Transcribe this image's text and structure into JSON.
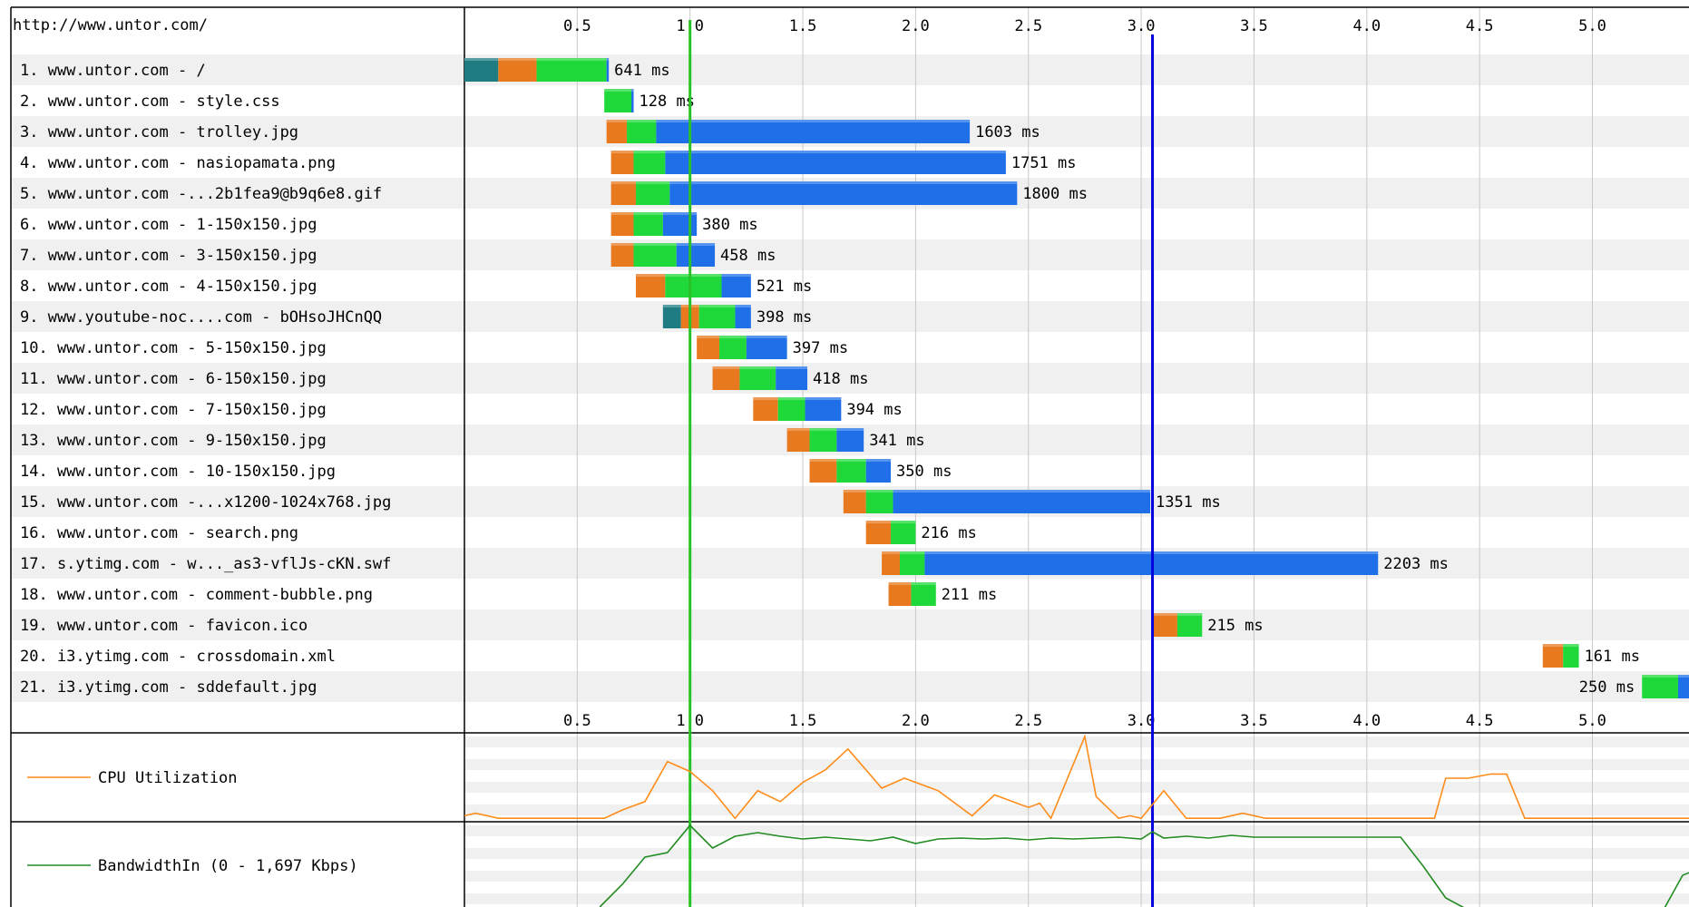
{
  "page_url": "http://www.untor.com/",
  "colors": {
    "dns": "#1f7c83",
    "connect": "#e8791f",
    "ttfb": "#1fd83a",
    "download": "#1f70e8",
    "start_render": "#28c228",
    "onload": "#0000dd",
    "row_stripe": "#f0f0f0",
    "grid": "#c8c8c8",
    "cpu": "#ff8c1a",
    "bandwidth": "#228b22"
  },
  "chart_data": {
    "type": "waterfall",
    "x_unit": "seconds",
    "xlim": [
      0,
      5.45
    ],
    "x_ticks": [
      "0.5",
      "1.0",
      "1.5",
      "2.0",
      "2.5",
      "3.0",
      "3.5",
      "4.0",
      "4.5",
      "5.0"
    ],
    "x_tick_values": [
      0.5,
      1.0,
      1.5,
      2.0,
      2.5,
      3.0,
      3.5,
      4.0,
      4.5,
      5.0
    ],
    "start_render_s": 1.0,
    "onload_s": 3.05,
    "requests": [
      {
        "label": "1. www.untor.com - /",
        "duration": "641 ms",
        "dns": [
          0.0,
          0.15
        ],
        "connect": [
          0.15,
          0.32
        ],
        "ttfb": [
          0.32,
          0.63
        ],
        "download": [
          0.63,
          0.64
        ]
      },
      {
        "label": "2. www.untor.com - style.css",
        "duration": "128 ms",
        "ttfb": [
          0.62,
          0.74
        ],
        "download": [
          0.74,
          0.75
        ]
      },
      {
        "label": "3. www.untor.com - trolley.jpg",
        "duration": "1603 ms",
        "connect": [
          0.63,
          0.72
        ],
        "ttfb": [
          0.72,
          0.85
        ],
        "download": [
          0.85,
          2.24
        ]
      },
      {
        "label": "4. www.untor.com - nasiopamata.png",
        "duration": "1751 ms",
        "connect": [
          0.65,
          0.75
        ],
        "ttfb": [
          0.75,
          0.89
        ],
        "download": [
          0.89,
          2.4
        ]
      },
      {
        "label": "5. www.untor.com -...2b1fea9@b9q6e8.gif",
        "duration": "1800 ms",
        "connect": [
          0.65,
          0.76
        ],
        "ttfb": [
          0.76,
          0.91
        ],
        "download": [
          0.91,
          2.45
        ]
      },
      {
        "label": "6. www.untor.com - 1-150x150.jpg",
        "duration": "380 ms",
        "connect": [
          0.65,
          0.75
        ],
        "ttfb": [
          0.75,
          0.88
        ],
        "download": [
          0.88,
          1.03
        ]
      },
      {
        "label": "7. www.untor.com - 3-150x150.jpg",
        "duration": "458 ms",
        "connect": [
          0.65,
          0.75
        ],
        "ttfb": [
          0.75,
          0.94
        ],
        "download": [
          0.94,
          1.11
        ]
      },
      {
        "label": "8. www.untor.com - 4-150x150.jpg",
        "duration": "521 ms",
        "connect": [
          0.76,
          0.89
        ],
        "ttfb": [
          0.89,
          1.14
        ],
        "download": [
          1.14,
          1.27
        ]
      },
      {
        "label": "9. www.youtube-noc....com - bOHsoJHCnQQ",
        "duration": "398 ms",
        "dns": [
          0.88,
          0.96
        ],
        "connect": [
          0.96,
          1.04
        ],
        "ttfb": [
          1.04,
          1.2
        ],
        "download": [
          1.2,
          1.27
        ]
      },
      {
        "label": "10. www.untor.com - 5-150x150.jpg",
        "duration": "397 ms",
        "connect": [
          1.03,
          1.13
        ],
        "ttfb": [
          1.13,
          1.25
        ],
        "download": [
          1.25,
          1.43
        ]
      },
      {
        "label": "11. www.untor.com - 6-150x150.jpg",
        "duration": "418 ms",
        "connect": [
          1.1,
          1.22
        ],
        "ttfb": [
          1.22,
          1.38
        ],
        "download": [
          1.38,
          1.52
        ]
      },
      {
        "label": "12. www.untor.com - 7-150x150.jpg",
        "duration": "394 ms",
        "connect": [
          1.28,
          1.39
        ],
        "ttfb": [
          1.39,
          1.51
        ],
        "download": [
          1.51,
          1.67
        ]
      },
      {
        "label": "13. www.untor.com - 9-150x150.jpg",
        "duration": "341 ms",
        "connect": [
          1.43,
          1.53
        ],
        "ttfb": [
          1.53,
          1.65
        ],
        "download": [
          1.65,
          1.77
        ]
      },
      {
        "label": "14. www.untor.com - 10-150x150.jpg",
        "duration": "350 ms",
        "connect": [
          1.53,
          1.65
        ],
        "ttfb": [
          1.65,
          1.78
        ],
        "download": [
          1.78,
          1.89
        ]
      },
      {
        "label": "15. www.untor.com -...x1200-1024x768.jpg",
        "duration": "1351 ms",
        "connect": [
          1.68,
          1.78
        ],
        "ttfb": [
          1.78,
          1.9
        ],
        "download": [
          1.9,
          3.04
        ]
      },
      {
        "label": "16. www.untor.com - search.png",
        "duration": "216 ms",
        "connect": [
          1.78,
          1.89
        ],
        "ttfb": [
          1.89,
          2.0
        ],
        "download": [
          2.0,
          2.0
        ]
      },
      {
        "label": "17. s.ytimg.com - w..._as3-vflJs-cKN.swf",
        "duration": "2203 ms",
        "connect": [
          1.85,
          1.93
        ],
        "ttfb": [
          1.93,
          2.04
        ],
        "download": [
          2.04,
          4.05
        ]
      },
      {
        "label": "18. www.untor.com - comment-bubble.png",
        "duration": "211 ms",
        "connect": [
          1.88,
          1.98
        ],
        "ttfb": [
          1.98,
          2.09
        ],
        "download": [
          2.09,
          2.09
        ]
      },
      {
        "label": "19. www.untor.com - favicon.ico",
        "duration": "215 ms",
        "connect": [
          3.05,
          3.16
        ],
        "ttfb": [
          3.16,
          3.27
        ],
        "download": [
          3.27,
          3.27
        ]
      },
      {
        "label": "20. i3.ytimg.com - crossdomain.xml",
        "duration": "161 ms",
        "connect": [
          4.78,
          4.87
        ],
        "ttfb": [
          4.87,
          4.94
        ],
        "download": [
          4.94,
          4.94
        ]
      },
      {
        "label": "21. i3.ytimg.com - sddefault.jpg",
        "duration": "250 ms",
        "label_left": true,
        "ttfb": [
          5.22,
          5.38
        ],
        "download": [
          5.38,
          5.45
        ]
      }
    ],
    "cpu": {
      "label": "CPU Utilization",
      "points": [
        [
          0.0,
          5
        ],
        [
          0.05,
          8
        ],
        [
          0.15,
          2
        ],
        [
          0.4,
          2
        ],
        [
          0.62,
          2
        ],
        [
          0.7,
          12
        ],
        [
          0.8,
          22
        ],
        [
          0.9,
          70
        ],
        [
          1.0,
          58
        ],
        [
          1.1,
          35
        ],
        [
          1.2,
          2
        ],
        [
          1.3,
          35
        ],
        [
          1.4,
          22
        ],
        [
          1.5,
          45
        ],
        [
          1.6,
          60
        ],
        [
          1.7,
          85
        ],
        [
          1.85,
          38
        ],
        [
          1.95,
          50
        ],
        [
          2.1,
          35
        ],
        [
          2.25,
          5
        ],
        [
          2.35,
          30
        ],
        [
          2.5,
          15
        ],
        [
          2.55,
          20
        ],
        [
          2.6,
          2
        ],
        [
          2.75,
          100
        ],
        [
          2.8,
          28
        ],
        [
          2.9,
          2
        ],
        [
          2.95,
          5
        ],
        [
          3.0,
          2
        ],
        [
          3.1,
          35
        ],
        [
          3.2,
          2
        ],
        [
          3.35,
          2
        ],
        [
          3.45,
          8
        ],
        [
          3.55,
          2
        ],
        [
          4.3,
          2
        ],
        [
          4.35,
          50
        ],
        [
          4.45,
          50
        ],
        [
          4.55,
          55
        ],
        [
          4.62,
          55
        ],
        [
          4.7,
          2
        ],
        [
          5.45,
          2
        ]
      ]
    },
    "bandwidth": {
      "label": "BandwidthIn (0 - 1,697 Kbps)",
      "points": [
        [
          0.6,
          10
        ],
        [
          0.7,
          35
        ],
        [
          0.8,
          65
        ],
        [
          0.9,
          70
        ],
        [
          1.0,
          100
        ],
        [
          1.1,
          75
        ],
        [
          1.2,
          88
        ],
        [
          1.3,
          92
        ],
        [
          1.4,
          88
        ],
        [
          1.5,
          85
        ],
        [
          1.6,
          87
        ],
        [
          1.7,
          85
        ],
        [
          1.8,
          83
        ],
        [
          1.9,
          87
        ],
        [
          2.0,
          80
        ],
        [
          2.1,
          85
        ],
        [
          2.2,
          86
        ],
        [
          2.3,
          85
        ],
        [
          2.4,
          86
        ],
        [
          2.5,
          84
        ],
        [
          2.6,
          86
        ],
        [
          2.7,
          85
        ],
        [
          2.8,
          86
        ],
        [
          2.9,
          87
        ],
        [
          3.0,
          85
        ],
        [
          3.05,
          93
        ],
        [
          3.1,
          86
        ],
        [
          3.2,
          88
        ],
        [
          3.3,
          86
        ],
        [
          3.4,
          89
        ],
        [
          3.5,
          87
        ],
        [
          3.6,
          87
        ],
        [
          3.7,
          87
        ],
        [
          3.8,
          87
        ],
        [
          3.9,
          87
        ],
        [
          4.0,
          87
        ],
        [
          4.1,
          87
        ],
        [
          4.15,
          87
        ],
        [
          4.25,
          55
        ],
        [
          4.35,
          20
        ],
        [
          4.5,
          0
        ],
        [
          5.0,
          0
        ],
        [
          5.15,
          0
        ],
        [
          5.3,
          0
        ],
        [
          5.4,
          45
        ],
        [
          5.45,
          50
        ]
      ]
    }
  }
}
